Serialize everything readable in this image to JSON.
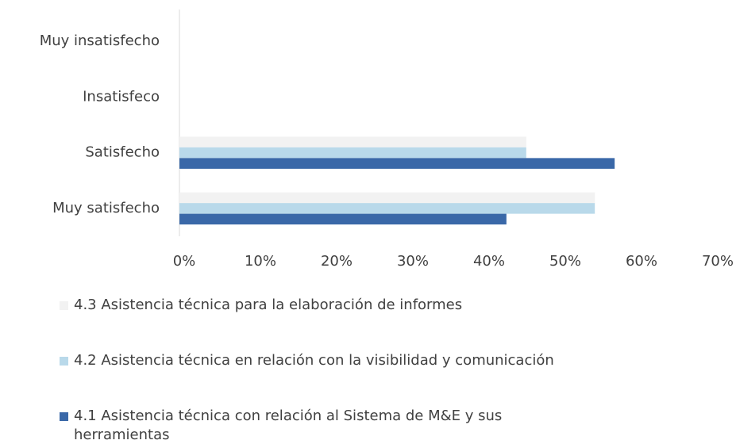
{
  "chart_data": {
    "type": "bar",
    "orientation": "horizontal",
    "categories": [
      "Muy insatisfecho",
      "Insatisfeco",
      "Satisfecho",
      "Muy satisfecho"
    ],
    "series": [
      {
        "name": "4.3 Asistencia técnica para la elaboración de informes",
        "color": "#f2f2f2",
        "values": [
          0,
          0,
          45.5,
          54.5
        ]
      },
      {
        "name": "4.2 Asistencia técnica en relación con la visibilidad y comunicación",
        "color": "#b9d9ea",
        "values": [
          0,
          0,
          45.5,
          54.5
        ]
      },
      {
        "name": "4.1 Asistencia técnica con relación al Sistema de M&E y sus herramientas",
        "color": "#3a68a8",
        "values": [
          0,
          0,
          57.1,
          42.9
        ]
      }
    ],
    "xlim": [
      0,
      70
    ],
    "xticks": [
      {
        "value": 0,
        "label": "0%"
      },
      {
        "value": 10,
        "label": "10%"
      },
      {
        "value": 20,
        "label": "20%"
      },
      {
        "value": 30,
        "label": "30%"
      },
      {
        "value": 40,
        "label": "40%"
      },
      {
        "value": 50,
        "label": "50%"
      },
      {
        "value": 60,
        "label": "60%"
      },
      {
        "value": 70,
        "label": "70%"
      }
    ],
    "legend": "bottom"
  }
}
